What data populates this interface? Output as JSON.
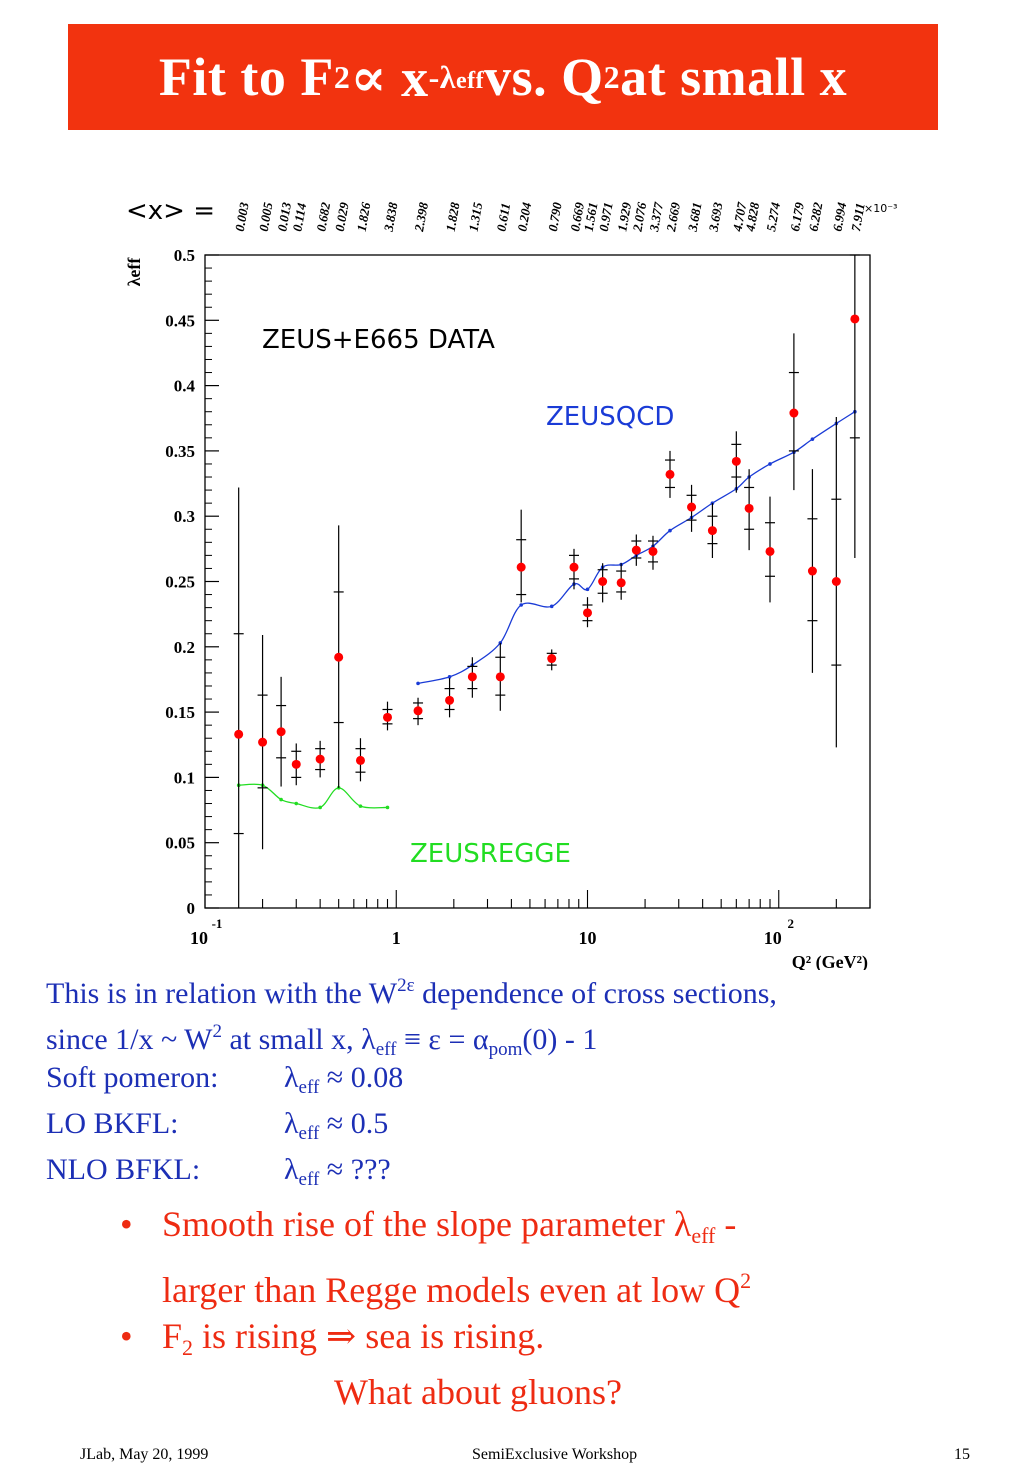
{
  "slide": {
    "title": {
      "pre": "Fit to F",
      "sub2": "2",
      "mid": " ∝ x",
      "sup_exp": "-λ",
      "sup_eff": "eff",
      "post1": " vs. Q",
      "sup_q": "2",
      "post2": " at small x"
    },
    "body": {
      "line1_a": "This is in relation with the W",
      "line1_sup": "2ε",
      "line1_b": " dependence of cross sections,",
      "line2_a": "since 1/x ~ W",
      "line2_sup": "2",
      "line2_b": " at small x, λ",
      "line2_sub": "eff",
      "line2_c": " ≡ ε = α",
      "line2_sub2": "pom",
      "line2_d": "(0) - 1",
      "rows": [
        {
          "label": "Soft pomeron:",
          "lam": "λ",
          "sub": "eff",
          "val": " ≈ 0.08"
        },
        {
          "label": "LO BKFL:",
          "lam": "λ",
          "sub": "eff",
          "val": " ≈ 0.5"
        },
        {
          "label": "NLO BFKL:",
          "lam": "λ",
          "sub": "eff",
          "val": " ≈ ???"
        }
      ]
    },
    "bullets": {
      "b1_a": "Smooth rise of the slope parameter λ",
      "b1_sub": "eff",
      "b1_b": " -",
      "b1_c": "larger than Regge models even at low Q",
      "b1_sup": "2",
      "b2_a": "F",
      "b2_sub": "2",
      "b2_b": " is rising ⇒ sea is rising.",
      "b2_c": "What about gluons?",
      "dot": "•"
    },
    "footer": {
      "left": "JLab, May 20, 1999",
      "center": "SemiExclusive Workshop",
      "right": "15"
    },
    "colors": {
      "title_bg": "#f2330f",
      "body_text": "#1c2fb5",
      "bullet_text": "#ee2b12",
      "data": "#ff0000",
      "qcd": "#1a3bd6",
      "regge": "#22dd22"
    }
  },
  "chart_data": {
    "type": "scatter",
    "ylabel": "λeff",
    "xlabel": "Q² (GeV²)",
    "x_scale": "log",
    "xlim": [
      0.1,
      300
    ],
    "ylim": [
      0,
      0.5
    ],
    "x_ticks": [
      {
        "base": "10",
        "exp": "-1"
      },
      {
        "base": "1",
        "exp": ""
      },
      {
        "base": "10",
        "exp": ""
      },
      {
        "base": "10",
        "exp": "2"
      }
    ],
    "y_ticks": [
      "0",
      "0.05",
      "0.1",
      "0.15",
      "0.2",
      "0.25",
      "0.3",
      "0.35",
      "0.4",
      "0.45",
      "0.5"
    ],
    "x_header": "<x> =",
    "x_header_unit": "×10⁻³",
    "x_values_header": [
      "0.003",
      "0.005",
      "0.013",
      "0.114",
      "0.682",
      "0.029",
      "1.826",
      "3.838",
      "2.398",
      "1.828",
      "1.315",
      "0.611",
      "0.204",
      "0.790",
      "0.669",
      "1.561",
      "0.971",
      "1.929",
      "2.076",
      "3.377",
      "2.669",
      "3.681",
      "3.693",
      "4.707",
      "4.828",
      "5.274",
      "6.179",
      "6.282",
      "6.994",
      "7.911"
    ],
    "annotations": {
      "data": "ZEUS+E665 DATA",
      "qcd": "ZEUSQCD",
      "regge": "ZEUSREGGE"
    },
    "series": [
      {
        "name": "ZEUS+E665 DATA",
        "points": [
          {
            "x": 0.15,
            "y": 0.133,
            "lo": 0.0,
            "hi": 0.322,
            "t1": 0.057,
            "t2": 0.21
          },
          {
            "x": 0.2,
            "y": 0.127,
            "lo": 0.045,
            "hi": 0.209,
            "t1": 0.092,
            "t2": 0.163
          },
          {
            "x": 0.25,
            "y": 0.135,
            "lo": 0.093,
            "hi": 0.177,
            "t1": 0.115,
            "t2": 0.155
          },
          {
            "x": 0.3,
            "y": 0.11,
            "lo": 0.094,
            "hi": 0.126,
            "t1": 0.1,
            "t2": 0.12
          },
          {
            "x": 0.4,
            "y": 0.114,
            "lo": 0.1,
            "hi": 0.128,
            "t1": 0.106,
            "t2": 0.122
          },
          {
            "x": 0.5,
            "y": 0.192,
            "lo": 0.092,
            "hi": 0.293,
            "t1": 0.142,
            "t2": 0.242
          },
          {
            "x": 0.65,
            "y": 0.113,
            "lo": 0.097,
            "hi": 0.13,
            "t1": 0.104,
            "t2": 0.122
          },
          {
            "x": 0.9,
            "y": 0.146,
            "lo": 0.136,
            "hi": 0.158,
            "t1": 0.141,
            "t2": 0.152
          },
          {
            "x": 1.3,
            "y": 0.151,
            "lo": 0.14,
            "hi": 0.161,
            "t1": 0.145,
            "t2": 0.157
          },
          {
            "x": 1.9,
            "y": 0.159,
            "lo": 0.146,
            "hi": 0.176,
            "t1": 0.152,
            "t2": 0.168
          },
          {
            "x": 2.5,
            "y": 0.177,
            "lo": 0.161,
            "hi": 0.192,
            "t1": 0.168,
            "t2": 0.185
          },
          {
            "x": 3.5,
            "y": 0.177,
            "lo": 0.151,
            "hi": 0.203,
            "t1": 0.163,
            "t2": 0.192
          },
          {
            "x": 4.5,
            "y": 0.261,
            "lo": 0.234,
            "hi": 0.305,
            "t1": 0.24,
            "t2": 0.282
          },
          {
            "x": 6.5,
            "y": 0.191,
            "lo": 0.182,
            "hi": 0.198,
            "t1": 0.186,
            "t2": 0.195
          },
          {
            "x": 8.5,
            "y": 0.261,
            "lo": 0.244,
            "hi": 0.275,
            "t1": 0.252,
            "t2": 0.27
          },
          {
            "x": 10,
            "y": 0.226,
            "lo": 0.215,
            "hi": 0.238,
            "t1": 0.22,
            "t2": 0.232
          },
          {
            "x": 12,
            "y": 0.25,
            "lo": 0.234,
            "hi": 0.264,
            "t1": 0.241,
            "t2": 0.259
          },
          {
            "x": 15,
            "y": 0.249,
            "lo": 0.236,
            "hi": 0.264,
            "t1": 0.242,
            "t2": 0.258
          },
          {
            "x": 18,
            "y": 0.274,
            "lo": 0.262,
            "hi": 0.286,
            "t1": 0.268,
            "t2": 0.281
          },
          {
            "x": 22,
            "y": 0.273,
            "lo": 0.259,
            "hi": 0.285,
            "t1": 0.265,
            "t2": 0.281
          },
          {
            "x": 27,
            "y": 0.332,
            "lo": 0.314,
            "hi": 0.35,
            "t1": 0.322,
            "t2": 0.343
          },
          {
            "x": 35,
            "y": 0.307,
            "lo": 0.288,
            "hi": 0.324,
            "t1": 0.297,
            "t2": 0.316
          },
          {
            "x": 45,
            "y": 0.289,
            "lo": 0.268,
            "hi": 0.31,
            "t1": 0.279,
            "t2": 0.3
          },
          {
            "x": 60,
            "y": 0.342,
            "lo": 0.318,
            "hi": 0.365,
            "t1": 0.33,
            "t2": 0.355
          },
          {
            "x": 70,
            "y": 0.306,
            "lo": 0.274,
            "hi": 0.336,
            "t1": 0.29,
            "t2": 0.322
          },
          {
            "x": 90,
            "y": 0.273,
            "lo": 0.234,
            "hi": 0.315,
            "t1": 0.254,
            "t2": 0.295
          },
          {
            "x": 120,
            "y": 0.379,
            "lo": 0.32,
            "hi": 0.44,
            "t1": 0.35,
            "t2": 0.41
          },
          {
            "x": 150,
            "y": 0.258,
            "lo": 0.18,
            "hi": 0.336,
            "t1": 0.22,
            "t2": 0.298
          },
          {
            "x": 200,
            "y": 0.25,
            "lo": 0.123,
            "hi": 0.376,
            "t1": 0.186,
            "t2": 0.313
          },
          {
            "x": 250,
            "y": 0.451,
            "lo": 0.268,
            "hi": 0.5,
            "t1": 0.36,
            "t2": 0.5
          }
        ]
      },
      {
        "name": "ZEUSQCD",
        "points": [
          {
            "x": 1.3,
            "y": 0.172
          },
          {
            "x": 1.9,
            "y": 0.177
          },
          {
            "x": 2.5,
            "y": 0.186
          },
          {
            "x": 3.5,
            "y": 0.203
          },
          {
            "x": 4.5,
            "y": 0.232
          },
          {
            "x": 6.5,
            "y": 0.231
          },
          {
            "x": 8.5,
            "y": 0.248
          },
          {
            "x": 10,
            "y": 0.244
          },
          {
            "x": 12,
            "y": 0.261
          },
          {
            "x": 15,
            "y": 0.263
          },
          {
            "x": 18,
            "y": 0.27
          },
          {
            "x": 22,
            "y": 0.277
          },
          {
            "x": 27,
            "y": 0.289
          },
          {
            "x": 35,
            "y": 0.299
          },
          {
            "x": 45,
            "y": 0.31
          },
          {
            "x": 60,
            "y": 0.321
          },
          {
            "x": 70,
            "y": 0.33
          },
          {
            "x": 90,
            "y": 0.34
          },
          {
            "x": 120,
            "y": 0.349
          },
          {
            "x": 150,
            "y": 0.359
          },
          {
            "x": 200,
            "y": 0.371
          },
          {
            "x": 250,
            "y": 0.38
          }
        ]
      },
      {
        "name": "ZEUSREGGE",
        "points": [
          {
            "x": 0.15,
            "y": 0.094
          },
          {
            "x": 0.2,
            "y": 0.094
          },
          {
            "x": 0.25,
            "y": 0.083
          },
          {
            "x": 0.3,
            "y": 0.08
          },
          {
            "x": 0.4,
            "y": 0.077
          },
          {
            "x": 0.5,
            "y": 0.092
          },
          {
            "x": 0.65,
            "y": 0.078
          },
          {
            "x": 0.9,
            "y": 0.077
          }
        ]
      }
    ]
  }
}
